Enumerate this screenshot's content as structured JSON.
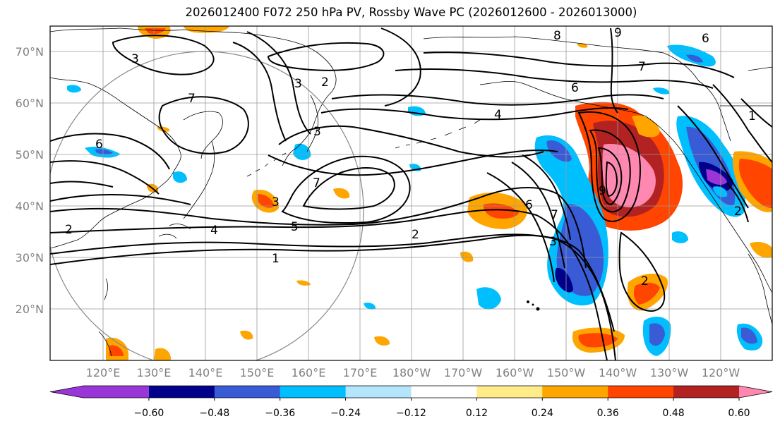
{
  "title": "2026012400 F072 250 hPa PV, Rossby Wave PC (2026012600 - 2026013000)",
  "lat_labels": [
    "70°N",
    "60°N",
    "50°N",
    "40°N",
    "30°N",
    "20°N"
  ],
  "lon_labels": [
    "120°E",
    "130°E",
    "140°E",
    "150°E",
    "160°E",
    "170°E",
    "180°W",
    "170°W",
    "160°W",
    "150°W",
    "140°W",
    "130°W",
    "120°W"
  ],
  "colorbar": {
    "colors": [
      "#9a35d8",
      "#00008b",
      "#3a5bd6",
      "#00bfff",
      "#b3e5fc",
      "#ffffff",
      "#ffeb87",
      "#ffa500",
      "#ff4500",
      "#b22222",
      "#ff88b0"
    ],
    "tick_labels": [
      "−0.60",
      "−0.48",
      "−0.36",
      "−0.24",
      "−0.12",
      "0.12",
      "0.24",
      "0.36",
      "0.48",
      "0.60"
    ]
  },
  "contour_labels": [
    "3",
    "2",
    "3",
    "8",
    "9",
    "6",
    "7",
    "6",
    "4",
    "1",
    "7",
    "3",
    "2",
    "6",
    "3",
    "7",
    "9",
    "6",
    "7",
    "5",
    "4",
    "2",
    "1",
    "2",
    "3",
    "2"
  ]
}
